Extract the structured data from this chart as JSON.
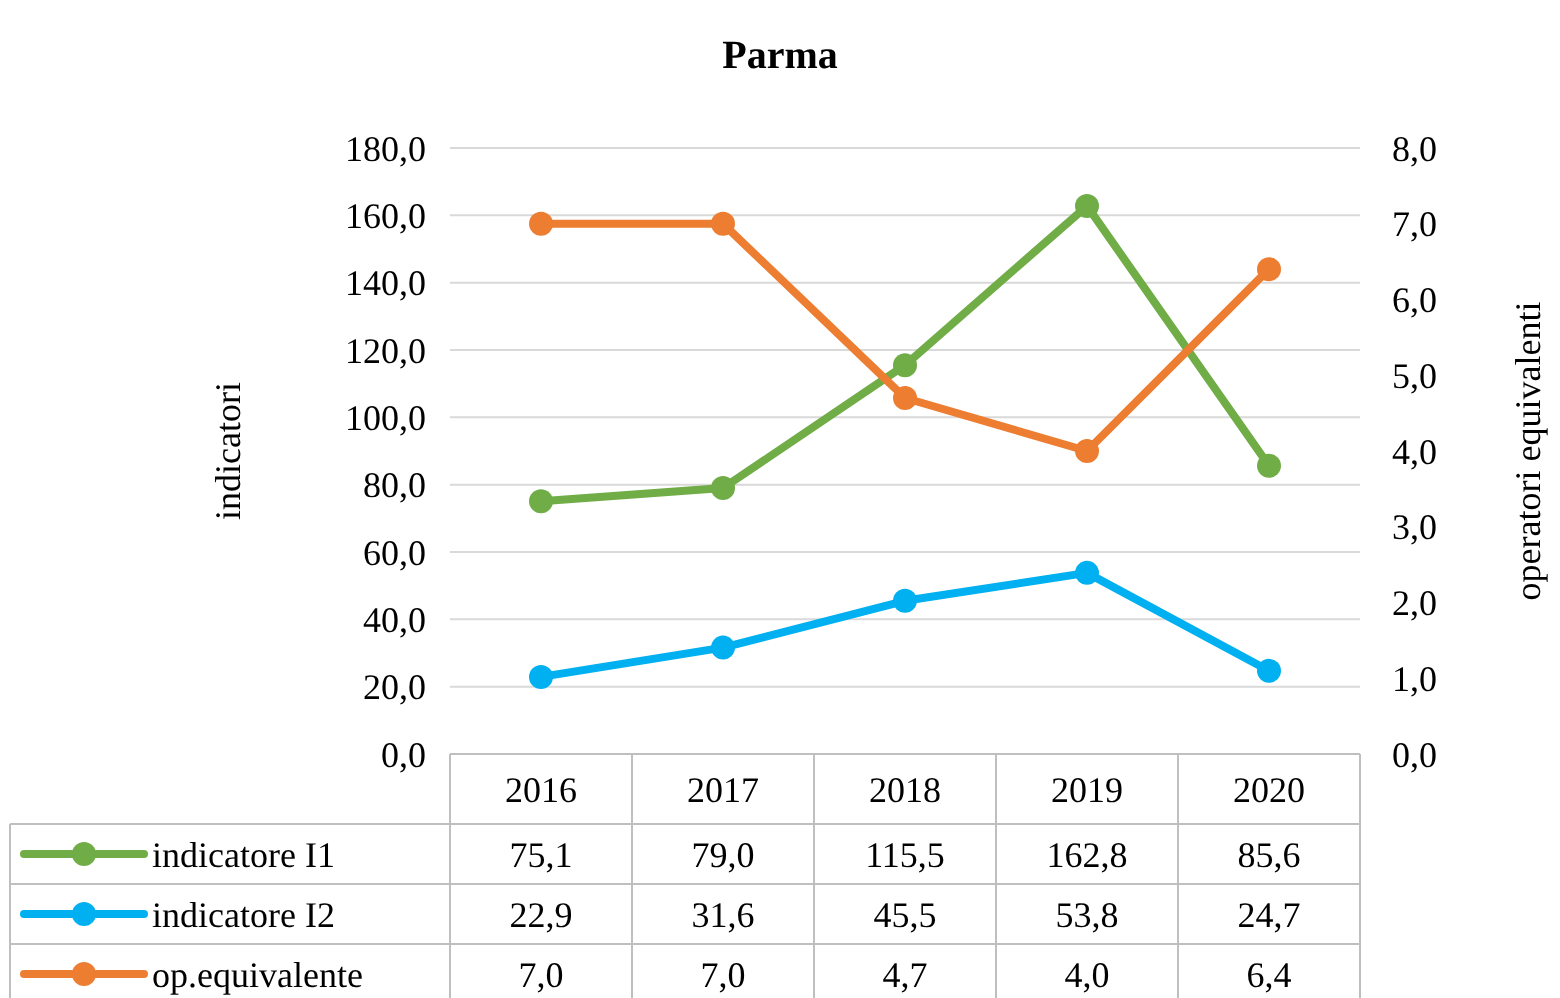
{
  "chart_data": {
    "type": "line",
    "title": "Parma",
    "ylabel": "indicatori",
    "y2label": "operatori equivalenti",
    "categories": [
      "2016",
      "2017",
      "2018",
      "2019",
      "2020"
    ],
    "series": [
      {
        "name": "indicatore I1",
        "color": "#70ad47",
        "values": [
          75.1,
          79.0,
          115.5,
          162.8,
          85.6
        ],
        "value_labels": [
          "75,1",
          "79,0",
          "115,5",
          "162,8",
          "85,6"
        ]
      },
      {
        "name": "indicatore I2",
        "color": "#00b0f0",
        "values": [
          22.9,
          31.6,
          45.5,
          53.8,
          24.7
        ],
        "value_labels": [
          "22,9",
          "31,6",
          "45,5",
          "53,8",
          "24,7"
        ]
      },
      {
        "name": "op.equivalente",
        "color": "#ed7d31",
        "axis": "y2",
        "values": [
          7.0,
          7.0,
          4.7,
          4.0,
          6.4
        ],
        "value_labels": [
          "7,0",
          "7,0",
          "4,7",
          "4,0",
          "6,4"
        ]
      }
    ],
    "ylim": [
      0,
      180
    ],
    "yticks": [
      {
        "value": 0,
        "label": "0,0"
      },
      {
        "value": 20,
        "label": "20,0"
      },
      {
        "value": 40,
        "label": "40,0"
      },
      {
        "value": 60,
        "label": "60,0"
      },
      {
        "value": 80,
        "label": "80,0"
      },
      {
        "value": 100,
        "label": "100,0"
      },
      {
        "value": 120,
        "label": "120,0"
      },
      {
        "value": 140,
        "label": "140,0"
      },
      {
        "value": 160,
        "label": "160,0"
      },
      {
        "value": 180,
        "label": "180,0"
      }
    ],
    "y2lim": [
      0,
      8
    ],
    "y2ticks": [
      {
        "value": 0,
        "label": "0,0"
      },
      {
        "value": 1,
        "label": "1,0"
      },
      {
        "value": 2,
        "label": "2,0"
      },
      {
        "value": 3,
        "label": "3,0"
      },
      {
        "value": 4,
        "label": "4,0"
      },
      {
        "value": 5,
        "label": "5,0"
      },
      {
        "value": 6,
        "label": "6,0"
      },
      {
        "value": 7,
        "label": "7,0"
      },
      {
        "value": 8,
        "label": "8,0"
      }
    ],
    "grid": "y",
    "legend": "bottom",
    "marker": "circle",
    "line_style": "solid"
  }
}
